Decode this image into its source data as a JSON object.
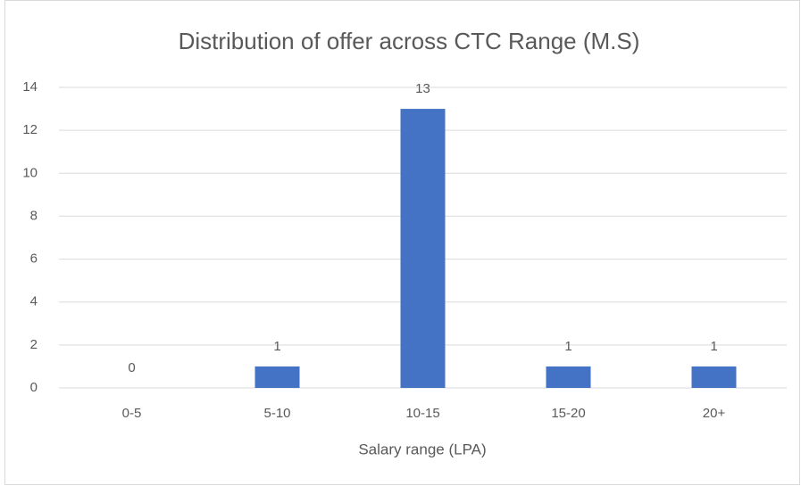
{
  "chart_data": {
    "type": "bar",
    "title": "Distribution of offer across CTC Range (M.S)",
    "x_label": "Salary range (LPA)",
    "categories": [
      "0-5",
      "5-10",
      "10-15",
      "15-20",
      "20+"
    ],
    "values": [
      0,
      1,
      13,
      1,
      1
    ],
    "color": "#4472c4",
    "ylim": [
      0,
      14
    ],
    "yticks": [
      0,
      2,
      4,
      6,
      8,
      10,
      12,
      14
    ],
    "grid": true
  }
}
